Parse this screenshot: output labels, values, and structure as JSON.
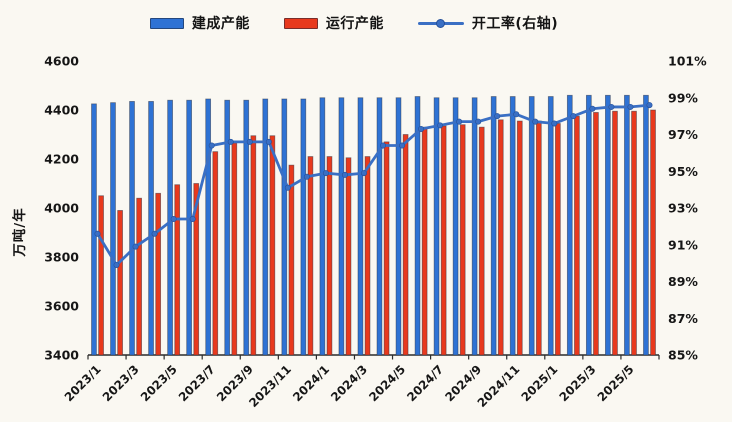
{
  "legend": {
    "items": [
      {
        "label": "建成产能",
        "swatch": "bar",
        "color": "#2e72d4"
      },
      {
        "label": "运行产能",
        "swatch": "bar",
        "color": "#e8391d"
      },
      {
        "label": "开工率(右轴)",
        "swatch": "line-marker",
        "color": "#3a6fc4"
      }
    ]
  },
  "chart_data": {
    "type": "bar",
    "title": "",
    "legend_position": "top",
    "grid": false,
    "categories": [
      "2023/1",
      "2023/2",
      "2023/3",
      "2023/4",
      "2023/5",
      "2023/6",
      "2023/7",
      "2023/8",
      "2023/9",
      "2023/10",
      "2023/11",
      "2023/12",
      "2024/1",
      "2024/2",
      "2024/3",
      "2024/4",
      "2024/5",
      "2024/6",
      "2024/7",
      "2024/8",
      "2024/9",
      "2024/10",
      "2024/11",
      "2024/12",
      "2025/1",
      "2025/2",
      "2025/3",
      "2025/4",
      "2025/5",
      "2025/6"
    ],
    "series": [
      {
        "name": "建成产能",
        "type": "bar",
        "axis": "left",
        "color": "#2e72d4",
        "values": [
          4425,
          4430,
          4435,
          4435,
          4440,
          4440,
          4445,
          4440,
          4440,
          4445,
          4445,
          4445,
          4450,
          4450,
          4450,
          4450,
          4450,
          4455,
          4450,
          4450,
          4450,
          4455,
          4455,
          4455,
          4455,
          4460,
          4460,
          4460,
          4460,
          4460
        ]
      },
      {
        "name": "运行产能",
        "type": "bar",
        "axis": "left",
        "color": "#e8391d",
        "values": [
          4050,
          3990,
          4040,
          4060,
          4095,
          4100,
          4230,
          4265,
          4295,
          4295,
          4175,
          4210,
          4210,
          4205,
          4210,
          4270,
          4300,
          4330,
          4335,
          4340,
          4330,
          4360,
          4355,
          4355,
          4345,
          4375,
          4390,
          4395,
          4395,
          4400
        ]
      },
      {
        "name": "开工率(右轴)",
        "type": "line",
        "axis": "right",
        "color": "#3a6fc4",
        "values": [
          91.6,
          89.9,
          90.9,
          91.6,
          92.4,
          92.4,
          96.4,
          96.6,
          96.6,
          96.6,
          94.1,
          94.7,
          94.9,
          94.8,
          94.9,
          96.4,
          96.4,
          97.3,
          97.5,
          97.7,
          97.7,
          98.0,
          98.1,
          97.7,
          97.6,
          98.0,
          98.4,
          98.5,
          98.5,
          98.6
        ]
      }
    ],
    "left_axis": {
      "label": "万吨/年",
      "min": 3400,
      "max": 4600,
      "tick_step": 200,
      "tick_labels": [
        "4600",
        "4400",
        "4200",
        "4000",
        "3800",
        "3600",
        "3400"
      ]
    },
    "right_axis": {
      "min": 85,
      "max": 101,
      "tick_step": 2,
      "tick_labels": [
        "101%",
        "99%",
        "97%",
        "95%",
        "93%",
        "91%",
        "89%",
        "87%",
        "85%"
      ]
    },
    "x_axis": {
      "tick_interval": 2,
      "tick_labels": [
        "2023/1",
        "2023/3",
        "2023/5",
        "2023/7",
        "2023/9",
        "2023/11",
        "2024/1",
        "2024/3",
        "2024/5",
        "2024/7",
        "2024/9",
        "2024/11",
        "2025/1",
        "2025/3",
        "2025/5"
      ]
    }
  }
}
